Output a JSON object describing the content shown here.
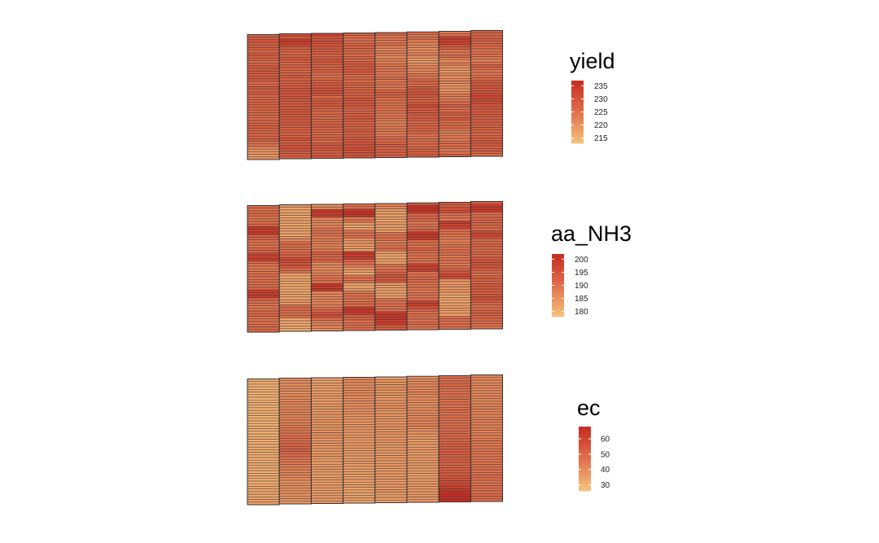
{
  "chart_data": [
    {
      "type": "heatmap",
      "title": "",
      "legend": {
        "title": "yield",
        "ticks": [
          215,
          220,
          225,
          230,
          235
        ],
        "range": [
          213,
          237
        ],
        "position": "right"
      },
      "colors": {
        "low": "#f7c17b",
        "mid": "#e0704c",
        "high": "#c62a20",
        "stroke": "#3c3c3c"
      },
      "grid": {
        "columns": 8,
        "rows": 48
      },
      "values": [
        [
          228,
          229,
          229,
          229,
          228,
          228,
          226,
          229,
          228,
          228,
          225,
          228,
          229,
          229,
          229,
          228,
          230,
          229,
          226,
          227,
          229,
          227,
          229,
          227,
          227,
          227,
          228,
          227,
          227,
          227,
          226,
          226,
          226,
          227,
          228,
          228,
          227,
          227,
          227,
          227,
          228,
          225,
          225,
          222,
          220,
          219,
          219,
          220
        ],
        [
          231,
          229,
          235,
          234,
          232,
          228,
          228,
          226,
          228,
          229,
          228,
          227,
          228,
          227,
          227,
          227,
          229,
          227,
          229,
          228,
          229,
          230,
          230,
          230,
          230,
          229,
          229,
          229,
          229,
          230,
          229,
          229,
          229,
          229,
          229,
          228,
          228,
          228,
          227,
          228,
          230,
          228,
          229,
          230,
          230,
          229,
          228,
          228
        ],
        [
          233,
          230,
          230,
          231,
          230,
          229,
          229,
          228,
          227,
          229,
          230,
          229,
          227,
          228,
          228,
          226,
          225,
          226,
          228,
          230,
          229,
          230,
          231,
          230,
          226,
          229,
          229,
          229,
          228,
          227,
          226,
          227,
          226,
          227,
          228,
          228,
          227,
          227,
          226,
          227,
          228,
          226,
          229,
          229,
          230,
          228,
          229,
          229
        ],
        [
          228,
          226,
          225,
          226,
          228,
          227,
          227,
          227,
          226,
          227,
          226,
          229,
          229,
          229,
          229,
          228,
          226,
          227,
          226,
          228,
          227,
          228,
          228,
          228,
          228,
          230,
          229,
          230,
          229,
          227,
          228,
          228,
          229,
          229,
          227,
          228,
          227,
          229,
          228,
          228,
          229,
          229,
          230,
          230,
          231,
          230,
          230,
          230
        ],
        [
          228,
          224,
          224,
          224,
          226,
          223,
          222,
          223,
          223,
          221,
          223,
          222,
          224,
          224,
          225,
          224,
          224,
          226,
          224,
          225,
          224,
          224,
          227,
          228,
          228,
          225,
          225,
          225,
          225,
          225,
          225,
          224,
          224,
          224,
          223,
          223,
          224,
          224,
          223,
          224,
          226,
          226,
          227,
          228,
          227,
          228,
          228,
          228
        ],
        [
          226,
          224,
          226,
          223,
          222,
          222,
          220,
          221,
          223,
          221,
          219,
          219,
          221,
          222,
          222,
          222,
          224,
          224,
          227,
          227,
          226,
          229,
          229,
          230,
          230,
          228,
          227,
          230,
          232,
          229,
          229,
          229,
          228,
          229,
          227,
          227,
          227,
          228,
          227,
          225,
          224,
          226,
          226,
          226,
          228,
          227,
          228,
          229
        ],
        [
          224,
          225,
          234,
          234,
          233,
          230,
          229,
          224,
          224,
          226,
          223,
          220,
          224,
          220,
          219,
          219,
          222,
          220,
          222,
          222,
          220,
          220,
          220,
          221,
          224,
          223,
          224,
          226,
          228,
          226,
          226,
          229,
          227,
          229,
          226,
          226,
          227,
          225,
          223,
          223,
          224,
          224,
          226,
          225,
          226,
          223,
          225,
          229
        ],
        [
          228,
          227,
          227,
          229,
          227,
          227,
          226,
          225,
          225,
          225,
          224,
          222,
          225,
          228,
          226,
          224,
          224,
          226,
          226,
          229,
          229,
          230,
          229,
          230,
          232,
          232,
          232,
          231,
          229,
          230,
          229,
          229,
          229,
          228,
          228,
          228,
          227,
          228,
          227,
          227,
          228,
          228,
          230,
          229,
          227,
          228,
          228,
          226
        ]
      ]
    },
    {
      "type": "heatmap",
      "title": "",
      "legend": {
        "title": "aa_NH3",
        "ticks": [
          180,
          185,
          190,
          195,
          200
        ],
        "range": [
          178,
          202
        ],
        "position": "right"
      },
      "colors": {
        "low": "#f7c17b",
        "mid": "#e0704c",
        "high": "#c62a20",
        "stroke": "#3c3c3c"
      },
      "grid": {
        "columns": 8,
        "rows": 48
      },
      "values": [
        [
          191,
          190,
          192,
          191,
          189,
          190,
          191,
          192,
          200,
          199,
          200,
          193,
          192,
          190,
          190,
          190,
          191,
          192,
          198,
          198,
          199,
          192,
          190,
          189,
          189,
          190,
          191,
          190,
          191,
          190,
          191,
          192,
          199,
          199,
          200,
          192,
          191,
          190,
          189,
          190,
          192,
          192,
          190,
          190,
          190,
          191,
          191,
          192
        ],
        [
          184,
          182,
          182,
          183,
          182,
          183,
          183,
          182,
          182,
          183,
          183,
          182,
          185,
          186,
          191,
          191,
          190,
          190,
          192,
          193,
          196,
          196,
          195,
          195,
          190,
          190,
          182,
          182,
          183,
          182,
          182,
          182,
          182,
          182,
          183,
          182,
          185,
          184,
          191,
          190,
          191,
          190,
          190,
          182,
          183,
          181,
          182,
          182
        ],
        [
          186,
          187,
          200,
          199,
          199,
          186,
          187,
          187,
          187,
          190,
          190,
          190,
          188,
          189,
          188,
          187,
          188,
          189,
          193,
          192,
          192,
          193,
          186,
          186,
          186,
          187,
          188,
          189,
          190,
          190,
          200,
          199,
          200,
          186,
          187,
          187,
          187,
          187,
          188,
          190,
          192,
          196,
          196,
          190,
          188,
          188,
          187,
          186
        ],
        [
          190,
          190,
          200,
          201,
          200,
          188,
          190,
          184,
          182,
          184,
          190,
          190,
          190,
          185,
          185,
          184,
          184,
          183,
          200,
          199,
          199,
          192,
          190,
          189,
          184,
          183,
          182,
          190,
          190,
          190,
          182,
          182,
          184,
          189,
          190,
          190,
          190,
          191,
          190,
          200,
          200,
          199,
          193,
          193,
          190,
          191,
          190,
          191
        ],
        [
          188,
          187,
          183,
          183,
          183,
          184,
          182,
          184,
          183,
          183,
          183,
          190,
          190,
          190,
          188,
          189,
          190,
          191,
          184,
          182,
          182,
          184,
          182,
          190,
          189,
          191,
          192,
          195,
          194,
          195,
          184,
          184,
          183,
          183,
          183,
          183,
          190,
          190,
          191,
          190,
          190,
          199,
          200,
          200,
          199,
          199,
          194,
          193
        ],
        [
          194,
          200,
          201,
          200,
          192,
          191,
          192,
          189,
          190,
          190,
          193,
          200,
          200,
          199,
          191,
          191,
          190,
          192,
          191,
          190,
          190,
          190,
          190,
          199,
          198,
          199,
          190,
          190,
          192,
          191,
          190,
          190,
          190,
          188,
          190,
          190,
          190,
          198,
          199,
          195,
          193,
          190,
          190,
          190,
          190,
          191,
          190,
          190
        ],
        [
          194,
          194,
          195,
          196,
          190,
          190,
          189,
          199,
          198,
          198,
          191,
          190,
          189,
          189,
          188,
          188,
          190,
          190,
          191,
          190,
          189,
          190,
          190,
          189,
          190,
          193,
          195,
          197,
          196,
          185,
          184,
          185,
          184,
          185,
          184,
          182,
          182,
          182,
          184,
          183,
          184,
          184,
          183,
          190,
          191,
          190,
          191,
          190
        ],
        [
          193,
          199,
          200,
          200,
          191,
          191,
          192,
          192,
          192,
          192,
          191,
          196,
          197,
          196,
          191,
          191,
          193,
          192,
          191,
          192,
          191,
          194,
          195,
          195,
          195,
          194,
          191,
          190,
          193,
          193,
          192,
          194,
          194,
          194,
          193,
          195,
          196,
          194,
          191,
          190,
          191,
          193,
          193,
          192,
          192,
          191,
          190,
          190
        ]
      ]
    },
    {
      "type": "heatmap",
      "title": "",
      "legend": {
        "title": "ec",
        "ticks": [
          30,
          40,
          50,
          60
        ],
        "range": [
          26,
          68
        ],
        "position": "right"
      },
      "colors": {
        "low": "#f7c17b",
        "mid": "#e0704c",
        "high": "#c62a20",
        "stroke": "#3c3c3c"
      },
      "grid": {
        "columns": 8,
        "rows": 48
      },
      "values": [
        [
          31,
          31,
          31,
          30,
          31,
          30,
          31,
          30,
          31,
          31,
          31,
          30,
          31,
          31,
          30,
          31,
          31,
          30,
          31,
          31,
          30,
          31,
          31,
          31,
          31,
          31,
          32,
          31,
          32,
          31,
          32,
          31,
          32,
          32,
          32,
          31,
          32,
          32,
          32,
          32,
          31,
          33,
          32,
          33,
          33,
          33,
          34,
          35
        ],
        [
          39,
          40,
          39,
          39,
          40,
          39,
          40,
          41,
          41,
          41,
          41,
          42,
          42,
          42,
          41,
          42,
          43,
          43,
          44,
          45,
          46,
          47,
          47,
          48,
          49,
          50,
          51,
          51,
          50,
          48,
          47,
          45,
          44,
          43,
          43,
          42,
          41,
          41,
          40,
          39,
          39,
          39,
          39,
          39,
          38,
          38,
          38,
          37
        ],
        [
          34,
          34,
          35,
          35,
          35,
          36,
          36,
          36,
          36,
          36,
          37,
          37,
          37,
          37,
          38,
          37,
          38,
          38,
          38,
          38,
          38,
          39,
          38,
          38,
          38,
          37,
          37,
          37,
          37,
          37,
          36,
          35,
          35,
          36,
          36,
          36,
          35,
          35,
          36,
          35,
          36,
          36,
          36,
          35,
          36,
          36,
          37,
          37
        ],
        [
          41,
          41,
          40,
          40,
          40,
          41,
          41,
          40,
          40,
          39,
          39,
          40,
          39,
          39,
          38,
          38,
          38,
          37,
          37,
          37,
          37,
          37,
          37,
          36,
          36,
          36,
          36,
          36,
          37,
          36,
          36,
          36,
          36,
          36,
          35,
          35,
          35,
          35,
          35,
          35,
          35,
          35,
          34,
          34,
          34,
          34,
          34,
          33
        ],
        [
          35,
          37,
          38,
          38,
          38,
          38,
          38,
          38,
          37,
          38,
          39,
          38,
          38,
          37,
          38,
          37,
          37,
          37,
          38,
          38,
          37,
          38,
          37,
          38,
          37,
          37,
          37,
          37,
          37,
          36,
          37,
          37,
          37,
          37,
          36,
          37,
          37,
          37,
          37,
          36,
          36,
          36,
          36,
          37,
          35,
          35,
          35,
          35
        ],
        [
          38,
          40,
          41,
          41,
          42,
          41,
          42,
          40,
          40,
          39,
          39,
          39,
          40,
          40,
          41,
          41,
          42,
          42,
          43,
          41,
          39,
          38,
          37,
          36,
          36,
          36,
          36,
          36,
          36,
          36,
          36,
          36,
          36,
          37,
          36,
          36,
          36,
          35,
          35,
          36,
          36,
          36,
          37,
          36,
          37,
          37,
          37,
          37
        ],
        [
          48,
          47,
          49,
          49,
          48,
          47,
          48,
          47,
          48,
          47,
          48,
          47,
          48,
          48,
          47,
          48,
          48,
          47,
          48,
          48,
          48,
          49,
          49,
          50,
          51,
          51,
          52,
          52,
          53,
          53,
          52,
          52,
          52,
          51,
          51,
          52,
          53,
          53,
          55,
          57,
          58,
          60,
          62,
          64,
          66,
          67,
          67,
          67
        ],
        [
          41,
          41,
          41,
          41,
          41,
          41,
          41,
          41,
          41,
          41,
          42,
          42,
          42,
          42,
          42,
          42,
          43,
          43,
          43,
          43,
          43,
          43,
          44,
          44,
          45,
          45,
          45,
          46,
          46,
          46,
          46,
          46,
          46,
          46,
          47,
          47,
          47,
          48,
          48,
          48,
          48,
          47,
          48,
          48,
          48,
          49,
          49,
          49
        ]
      ]
    }
  ]
}
